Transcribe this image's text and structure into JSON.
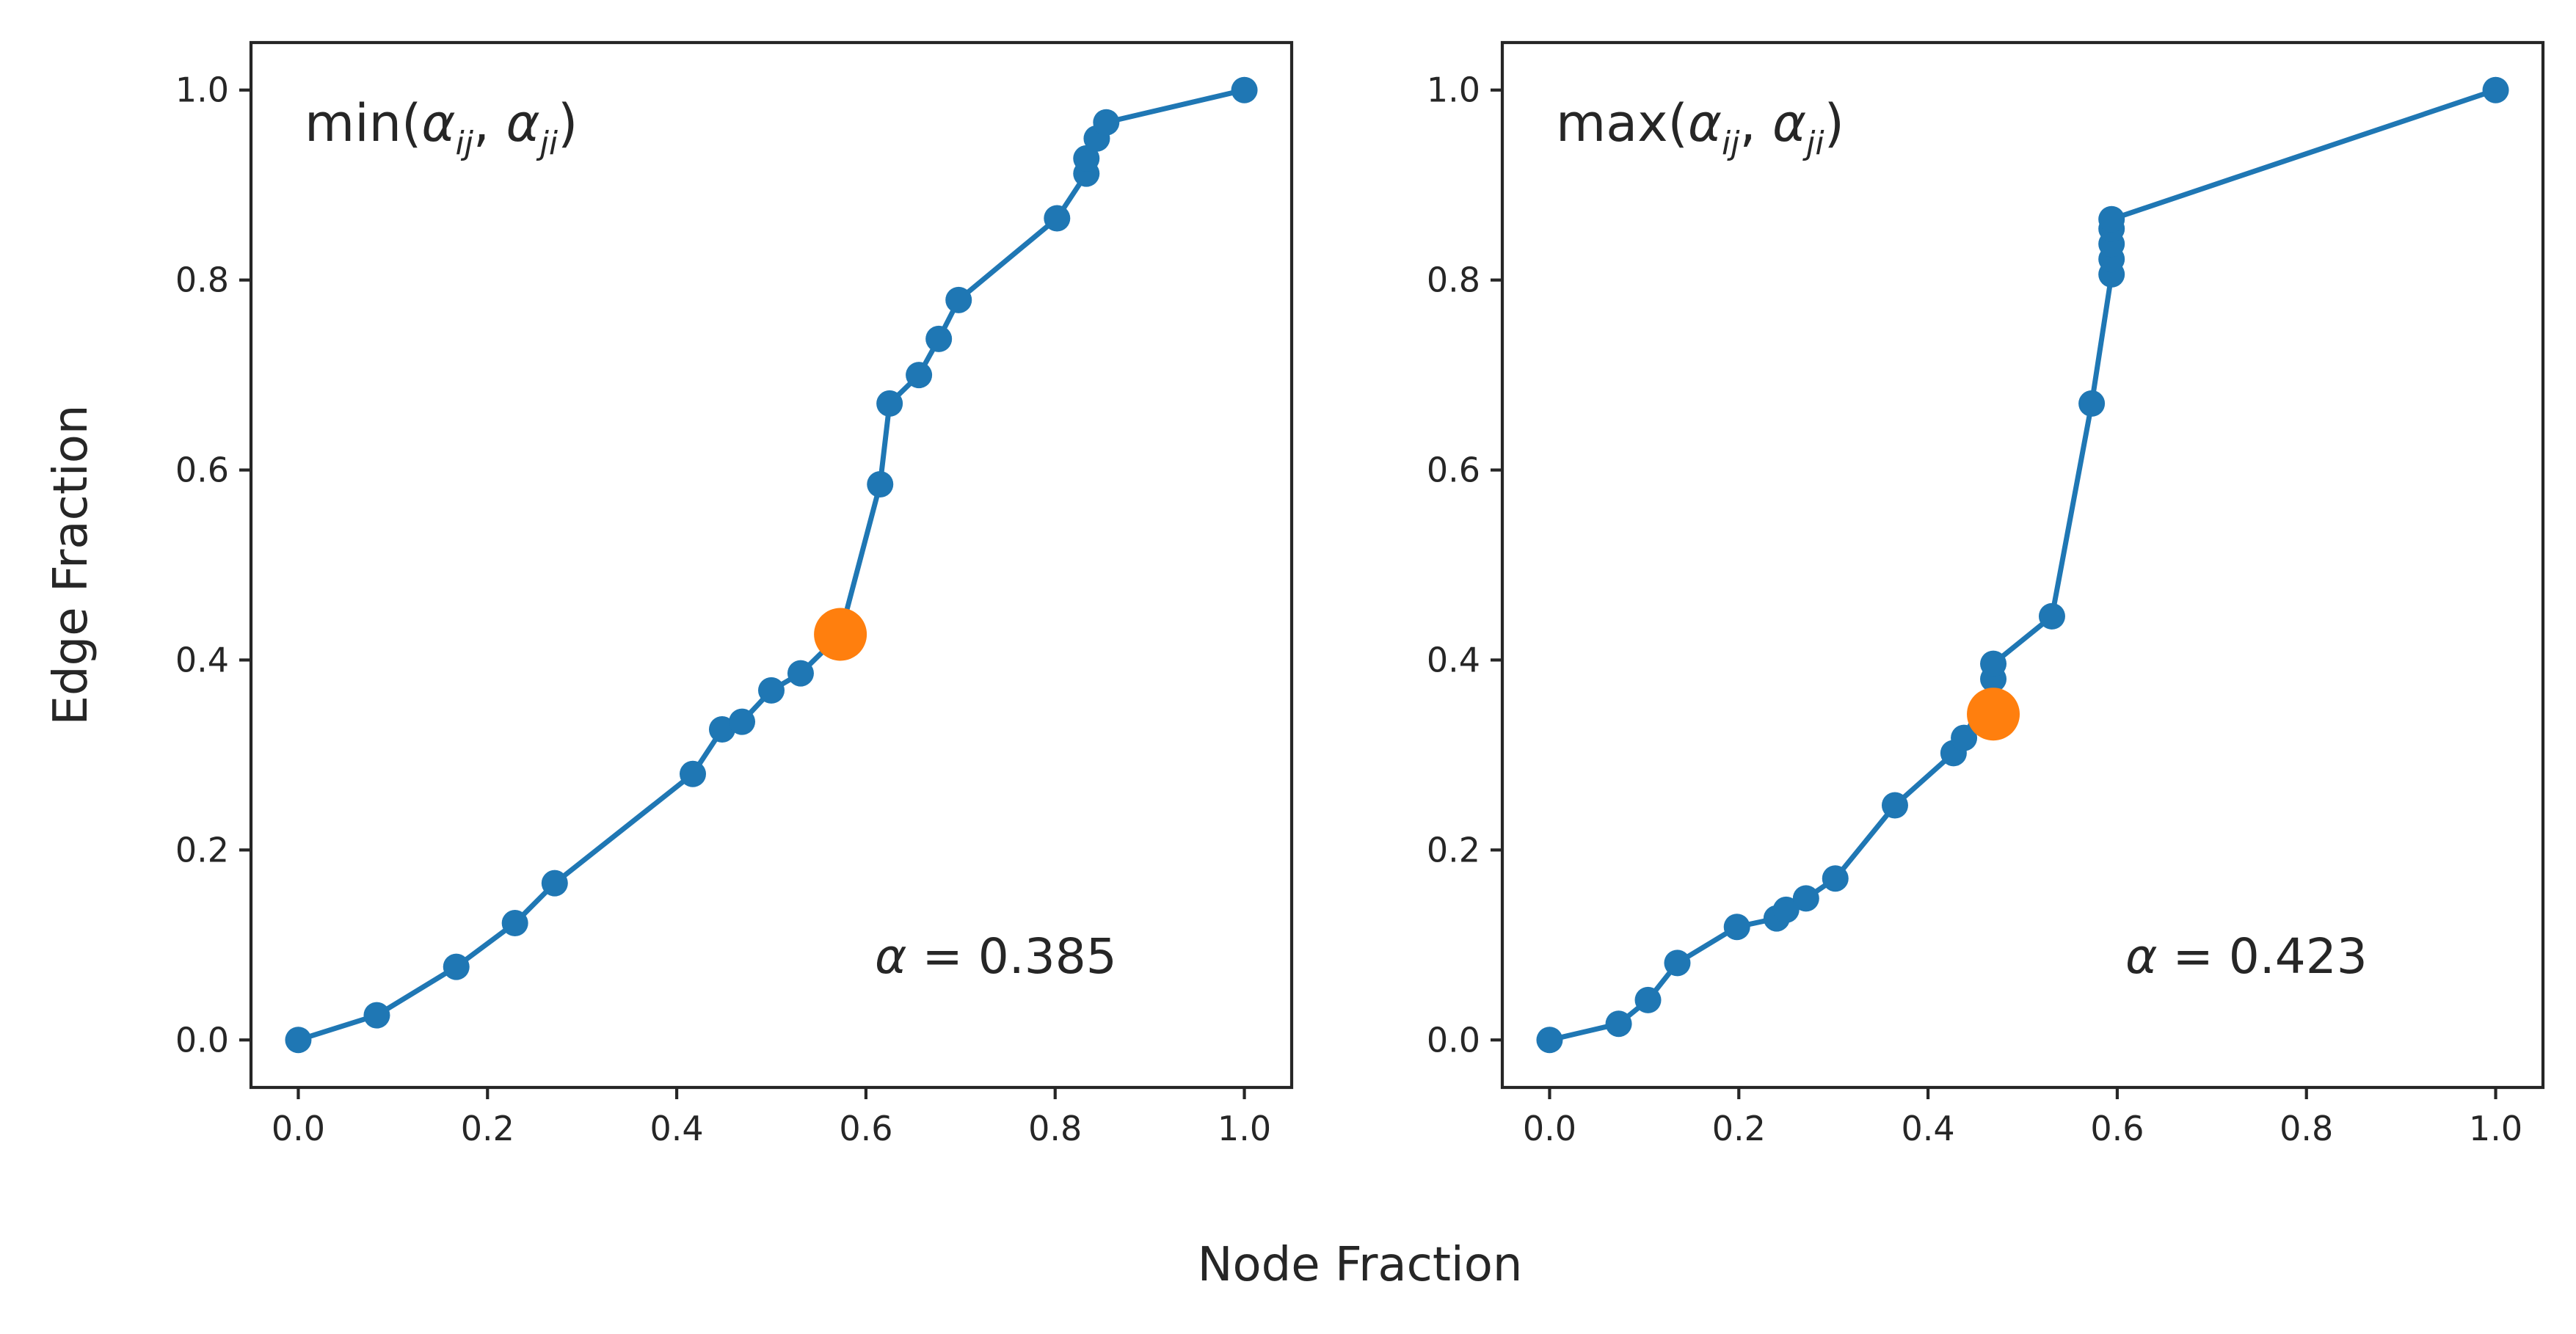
{
  "figure": {
    "xlabel": "Node Fraction",
    "ylabel": "Edge Fraction"
  },
  "colors": {
    "series": "#1f77b4",
    "highlight": "#ff7f0e",
    "axes": "#262626"
  },
  "chart_data": [
    {
      "type": "line",
      "title": "min(αij, αji)",
      "title_parts": {
        "func": "min(",
        "a": "α",
        "sub1": "ij",
        "sep": ", ",
        "b": "α",
        "sub2": "ji",
        "close": ")"
      },
      "annotation": {
        "symbol": "α",
        "text": " = 0.385"
      },
      "xlim": [
        -0.05,
        1.05
      ],
      "ylim": [
        -0.05,
        1.05
      ],
      "xticks": [
        "0.0",
        "0.2",
        "0.4",
        "0.6",
        "0.8",
        "1.0"
      ],
      "yticks": [
        "0.0",
        "0.2",
        "0.4",
        "0.6",
        "0.8",
        "1.0"
      ],
      "grid": false,
      "series": [
        {
          "x": [
            0.0,
            0.083,
            0.167,
            0.229,
            0.271,
            0.417,
            0.448,
            0.469,
            0.5,
            0.531,
            0.573,
            0.615,
            0.625,
            0.656,
            0.677,
            0.698,
            0.802,
            0.833,
            0.833,
            0.844,
            0.854,
            1.0
          ],
          "y": [
            0.0,
            0.026,
            0.077,
            0.123,
            0.165,
            0.28,
            0.327,
            0.335,
            0.368,
            0.386,
            0.427,
            0.585,
            0.67,
            0.7,
            0.738,
            0.779,
            0.865,
            0.912,
            0.928,
            0.949,
            0.966,
            1.0
          ]
        }
      ],
      "highlight": {
        "x": 0.573,
        "y": 0.427
      }
    },
    {
      "type": "line",
      "title": "max(αij, αji)",
      "title_parts": {
        "func": "max(",
        "a": "α",
        "sub1": "ij",
        "sep": ", ",
        "b": "α",
        "sub2": "ji",
        "close": ")"
      },
      "annotation": {
        "symbol": "α",
        "text": " = 0.423"
      },
      "xlim": [
        -0.05,
        1.05
      ],
      "ylim": [
        -0.05,
        1.05
      ],
      "xticks": [
        "0.0",
        "0.2",
        "0.4",
        "0.6",
        "0.8",
        "1.0"
      ],
      "yticks": [
        "0.0",
        "0.2",
        "0.4",
        "0.6",
        "0.8",
        "1.0"
      ],
      "grid": false,
      "series": [
        {
          "x": [
            0.0,
            0.073,
            0.104,
            0.135,
            0.198,
            0.24,
            0.25,
            0.271,
            0.302,
            0.365,
            0.427,
            0.438,
            0.469,
            0.469,
            0.531,
            0.573,
            0.594,
            0.594,
            0.594,
            0.594,
            0.594,
            1.0
          ],
          "y": [
            0.0,
            0.017,
            0.042,
            0.081,
            0.119,
            0.128,
            0.137,
            0.149,
            0.17,
            0.247,
            0.302,
            0.318,
            0.38,
            0.396,
            0.446,
            0.67,
            0.806,
            0.822,
            0.838,
            0.854,
            0.864,
            1.0
          ]
        }
      ],
      "highlight": {
        "x": 0.469,
        "y": 0.343
      }
    }
  ]
}
